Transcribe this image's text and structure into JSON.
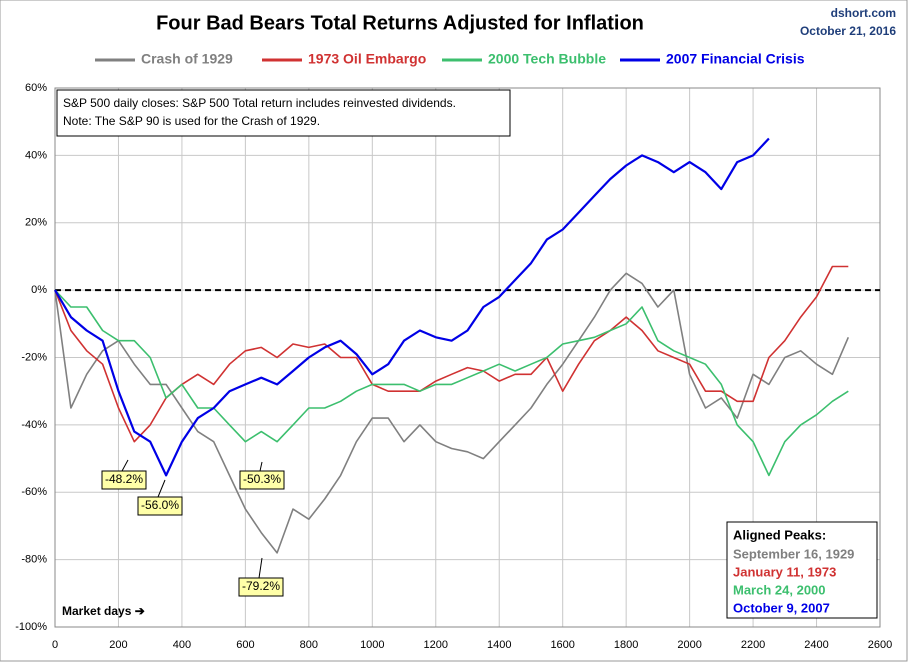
{
  "chart_data": {
    "type": "line",
    "title": "Four Bad Bears Total Returns Adjusted for Inflation",
    "source": "dshort.com",
    "date": "October 21, 2016",
    "notes": [
      "S&P 500 daily closes: S&P 500 Total return includes reinvested dividends.",
      "Note: The S&P 90 is used for the Crash of 1929."
    ],
    "x_label": "Market days ➔",
    "x": [
      0,
      50,
      100,
      150,
      200,
      250,
      300,
      350,
      400,
      450,
      500,
      550,
      600,
      650,
      700,
      750,
      800,
      850,
      900,
      950,
      1000,
      1050,
      1100,
      1150,
      1200,
      1250,
      1300,
      1350,
      1400,
      1450,
      1500,
      1550,
      1600,
      1650,
      1700,
      1750,
      1800,
      1850,
      1900,
      1950,
      2000,
      2050,
      2100,
      2150,
      2200,
      2250,
      2300,
      2350,
      2400,
      2450,
      2500
    ],
    "series": [
      {
        "name": "Crash of 1929",
        "color": "#808080",
        "values": [
          0,
          -35,
          -25,
          -18,
          -15,
          -22,
          -28,
          -28,
          -35,
          -42,
          -45,
          -55,
          -65,
          -72,
          -78,
          -65,
          -68,
          -62,
          -55,
          -45,
          -38,
          -38,
          -45,
          -40,
          -45,
          -47,
          -48,
          -50,
          -45,
          -40,
          -35,
          -28,
          -22,
          -15,
          -8,
          0,
          5,
          2,
          -5,
          0,
          -25,
          -35,
          -32,
          -38,
          -25,
          -28,
          -20,
          -18,
          -22,
          -25,
          -14
        ]
      },
      {
        "name": "1973 Oil Embargo",
        "color": "#d03232",
        "values": [
          0,
          -12,
          -18,
          -22,
          -35,
          -45,
          -40,
          -32,
          -28,
          -25,
          -28,
          -22,
          -18,
          -17,
          -20,
          -16,
          -17,
          -16,
          -20,
          -20,
          -28,
          -30,
          -30,
          -30,
          -27,
          -25,
          -23,
          -24,
          -27,
          -25,
          -25,
          -20,
          -30,
          -22,
          -15,
          -12,
          -8,
          -12,
          -18,
          -20,
          -22,
          -30,
          -30,
          -33,
          -33,
          -20,
          -15,
          -8,
          -2,
          7,
          7
        ]
      },
      {
        "name": "2000 Tech Bubble",
        "color": "#3cbf6e",
        "values": [
          0,
          -5,
          -5,
          -12,
          -15,
          -15,
          -20,
          -32,
          -28,
          -35,
          -35,
          -40,
          -45,
          -42,
          -45,
          -40,
          -35,
          -35,
          -33,
          -30,
          -28,
          -28,
          -28,
          -30,
          -28,
          -28,
          -26,
          -24,
          -22,
          -24,
          -22,
          -20,
          -16,
          -15,
          -14,
          -12,
          -10,
          -5,
          -15,
          -18,
          -20,
          -22,
          -28,
          -40,
          -45,
          -55,
          -45,
          -40,
          -37,
          -33,
          -30
        ]
      },
      {
        "name": "2007 Financial Crisis",
        "color": "#0000e6",
        "values": [
          0,
          -8,
          -12,
          -15,
          -30,
          -42,
          -45,
          -55,
          -45,
          -38,
          -35,
          -30,
          -28,
          -26,
          -28,
          -24,
          -20,
          -17,
          -15,
          -19,
          -25,
          -22,
          -15,
          -12,
          -14,
          -15,
          -12,
          -5,
          -2,
          3,
          8,
          15,
          18,
          23,
          28,
          33,
          37,
          40,
          38,
          35,
          38,
          35,
          30,
          38,
          40,
          45,
          null,
          null,
          null,
          null,
          null
        ]
      }
    ],
    "annotations": [
      "-48.2%",
      "-56.0%",
      "-50.3%",
      "-79.2%"
    ],
    "peaks_title": "Aligned Peaks:",
    "peaks": [
      "September 16, 1929",
      "January 11, 1973",
      "March 24, 2000",
      "October 9, 2007"
    ],
    "xlim": [
      0,
      2600
    ],
    "xticks": [
      0,
      200,
      400,
      600,
      800,
      1000,
      1200,
      1400,
      1600,
      1800,
      2000,
      2200,
      2400,
      2600
    ],
    "ylim": [
      -100,
      60
    ],
    "yticks": [
      {
        "value": -100,
        "label": "-100%"
      },
      {
        "value": -80,
        "label": "-80%"
      },
      {
        "value": -60,
        "label": "-60%"
      },
      {
        "value": -40,
        "label": "-40%"
      },
      {
        "value": -20,
        "label": "-20%"
      },
      {
        "value": 0,
        "label": "0%"
      },
      {
        "value": 20,
        "label": "20%"
      },
      {
        "value": 40,
        "label": "40%"
      },
      {
        "value": 60,
        "label": "60%"
      }
    ],
    "grid": true,
    "zero_line": true
  }
}
